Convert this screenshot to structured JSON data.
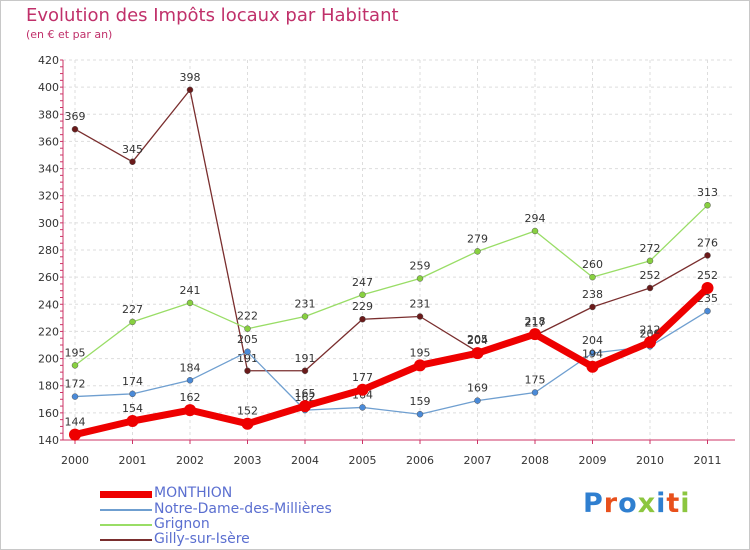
{
  "header": {
    "title": "Evolution des Impôts locaux par Habitant",
    "subtitle": "(en € et par an)"
  },
  "logo": {
    "text": "Proxiti",
    "colors": [
      "#2f7fd0",
      "#e8501c",
      "#2f7fd0",
      "#8cc63f",
      "#2f7fd0",
      "#e8501c",
      "#8cc63f"
    ]
  },
  "chart_data": {
    "type": "line",
    "title": "Evolution des Impôts locaux par Habitant",
    "subtitle": "(en € et par an)",
    "xlabel": "",
    "ylabel": "",
    "x": [
      "2000",
      "2001",
      "2002",
      "2003",
      "2004",
      "2005",
      "2006",
      "2007",
      "2008",
      "2009",
      "2010",
      "2011"
    ],
    "ylim": [
      140,
      420
    ],
    "yticks": [
      140,
      160,
      180,
      200,
      220,
      240,
      260,
      280,
      300,
      320,
      340,
      360,
      380,
      400,
      420
    ],
    "grid": true,
    "legend_position": "bottom-left",
    "series": [
      {
        "name": "MONTHION",
        "color": "#ee0000",
        "emphasis": true,
        "values": [
          144,
          154,
          162,
          152,
          165,
          177,
          195,
          204,
          218,
          194,
          212,
          252
        ],
        "labels": [
          "144",
          "154",
          "162",
          "152",
          "165",
          "177",
          "195",
          "204",
          "218",
          "194",
          "212",
          "252"
        ]
      },
      {
        "name": "Notre-Dame-des-Millières",
        "color": "#6f9fd0",
        "point_color": "#4a8ad8",
        "values": [
          172,
          174,
          184,
          205,
          162,
          164,
          159,
          169,
          175,
          204,
          209,
          235
        ],
        "labels": [
          "172",
          "174",
          "184",
          "205",
          "162",
          "164",
          "159",
          "169",
          "175",
          "204",
          "209",
          "235"
        ]
      },
      {
        "name": "Grignon",
        "color": "#99dd66",
        "point_color": "#88d040",
        "values": [
          195,
          227,
          241,
          222,
          231,
          247,
          259,
          279,
          294,
          260,
          272,
          313
        ],
        "labels": [
          "195",
          "227",
          "241",
          "222",
          "231",
          "247",
          "259",
          "279",
          "294",
          "260",
          "272",
          "313"
        ]
      },
      {
        "name": "Gilly-sur-Isère",
        "color": "#7a2e2e",
        "point_color": "#6a1a1a",
        "values": [
          369,
          345,
          398,
          191,
          191,
          229,
          231,
          205,
          217,
          238,
          252,
          276
        ],
        "labels": [
          "369",
          "345",
          "398",
          "191",
          "191",
          "229",
          "231",
          "205",
          "217",
          "238",
          "252",
          "276"
        ]
      }
    ]
  }
}
